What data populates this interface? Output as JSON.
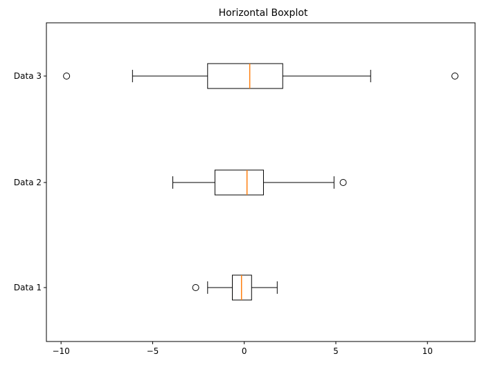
{
  "chart_data": {
    "type": "boxplot",
    "orientation": "horizontal",
    "title": "Horizontal Boxplot",
    "xlabel": "",
    "ylabel": "",
    "xlim": [
      -10.8,
      12.6
    ],
    "xticks": [
      {
        "value": -10,
        "label": "−10"
      },
      {
        "value": -5,
        "label": "−5"
      },
      {
        "value": 0,
        "label": "0"
      },
      {
        "value": 5,
        "label": "5"
      },
      {
        "value": 10,
        "label": "10"
      }
    ],
    "grid": false,
    "colors": {
      "box": "#000000",
      "median": "#ff7f0e"
    },
    "series": [
      {
        "label": "Data 1",
        "whisker_low": -2.0,
        "q1": -0.65,
        "median": -0.15,
        "q3": 0.4,
        "whisker_high": 1.8,
        "outliers": [
          -2.65
        ]
      },
      {
        "label": "Data 2",
        "whisker_low": -3.9,
        "q1": -1.6,
        "median": 0.15,
        "q3": 1.05,
        "whisker_high": 4.9,
        "outliers": [
          5.4
        ]
      },
      {
        "label": "Data 3",
        "whisker_low": -6.1,
        "q1": -2.0,
        "median": 0.3,
        "q3": 2.1,
        "whisker_high": 6.9,
        "outliers": [
          -9.7,
          11.5
        ]
      }
    ]
  }
}
